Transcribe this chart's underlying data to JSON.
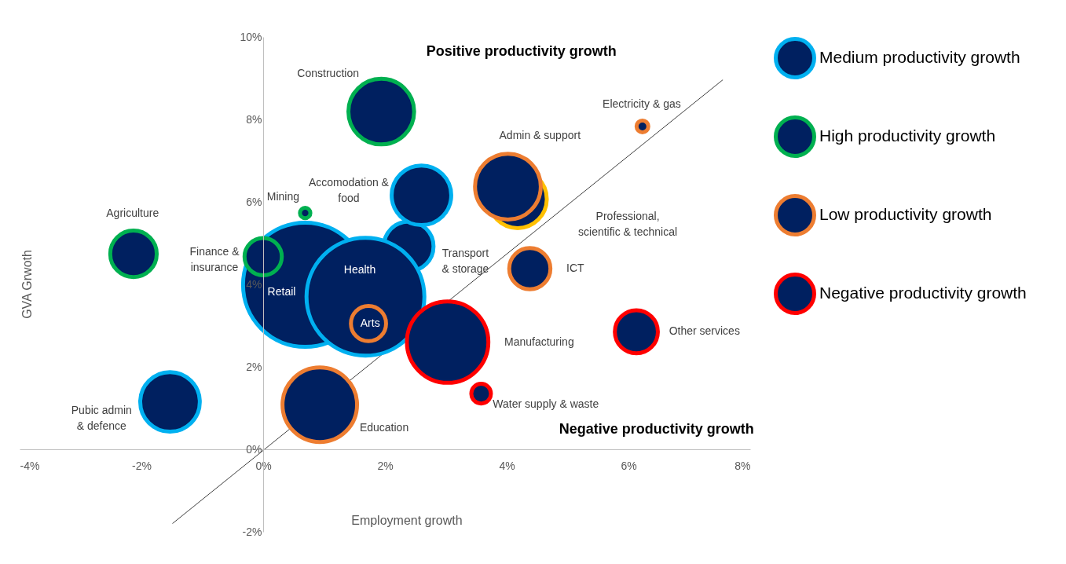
{
  "chart_data": {
    "type": "bubble",
    "xlabel": "Employment growth",
    "ylabel": "GVA Grwoth",
    "xlim": [
      -4,
      8
    ],
    "ylim": [
      -2,
      10
    ],
    "xticks": [
      {
        "value": -4,
        "label": "-4%"
      },
      {
        "value": -2,
        "label": "-2%"
      },
      {
        "value": 0,
        "label": "0%"
      },
      {
        "value": 2,
        "label": "2%"
      },
      {
        "value": 4,
        "label": "4%"
      },
      {
        "value": 6,
        "label": "6%"
      },
      {
        "value": 8,
        "label": "8%"
      }
    ],
    "yticks": [
      {
        "value": -2,
        "label": "-2%"
      },
      {
        "value": 0,
        "label": "0%"
      },
      {
        "value": 2,
        "label": "2%"
      },
      {
        "value": 4,
        "label": "4%"
      },
      {
        "value": 6,
        "label": "6%"
      },
      {
        "value": 8,
        "label": "8%"
      },
      {
        "value": 10,
        "label": "10%"
      }
    ],
    "grid": false,
    "legend": "right",
    "series": [
      {
        "color": "#ffc000",
        "x": [
          4.18
        ],
        "values": [
          6.07
        ],
        "sizes": [
          0.22
        ]
      },
      {
        "name": "Medium productivity growth",
        "color": "#00b0f0",
        "x": [
          2.39,
          2.6,
          0.69,
          1.68,
          -1.53
        ],
        "values": [
          4.92,
          6.16,
          3.99,
          3.7,
          1.15
        ],
        "sizes": [
          0.16,
          0.23,
          1.0,
          0.9,
          0.23
        ]
      },
      {
        "name": "High productivity growth",
        "color": "#00b050",
        "x": [
          1.94,
          0.69,
          -2.13,
          0.0
        ],
        "values": [
          8.19,
          5.73,
          4.74,
          4.67
        ],
        "sizes": [
          0.28,
          0.007,
          0.14,
          0.09
        ]
      },
      {
        "name": "Low productivity growth",
        "color": "#ed7d31",
        "x": [
          6.23,
          4.02,
          1.73,
          4.38,
          0.93
        ],
        "values": [
          7.83,
          6.37,
          3.05,
          4.38,
          1.08
        ],
        "sizes": [
          0.009,
          0.28,
          0.08,
          0.11,
          0.36
        ]
      },
      {
        "name": "Negative productivity growth",
        "color": "#ff0000",
        "x": [
          6.13,
          3.03,
          3.58
        ],
        "values": [
          2.85,
          2.6,
          1.35
        ],
        "sizes": [
          0.12,
          0.43,
          0.025
        ]
      },
      {
        "type": "line",
        "color": "#404040",
        "x": [
          -1.49,
          7.55
        ],
        "values": [
          -1.8,
          8.96
        ]
      }
    ],
    "annotations": [
      "Positive productivity growth",
      "Negative productivity growth",
      "Construction",
      "Electricity & gas",
      "Admin & support",
      "Accomodation &\nfood",
      "Mining",
      "Agriculture",
      "Professional,\nscientific & technical",
      "Finance &\ninsurance",
      "Transport\n& storage",
      "ICT",
      "Health",
      "Retail",
      "Arts",
      "Other services",
      "Manufacturing",
      "Water supply & waste",
      "Pubic admin\n& defence",
      "Education"
    ]
  }
}
